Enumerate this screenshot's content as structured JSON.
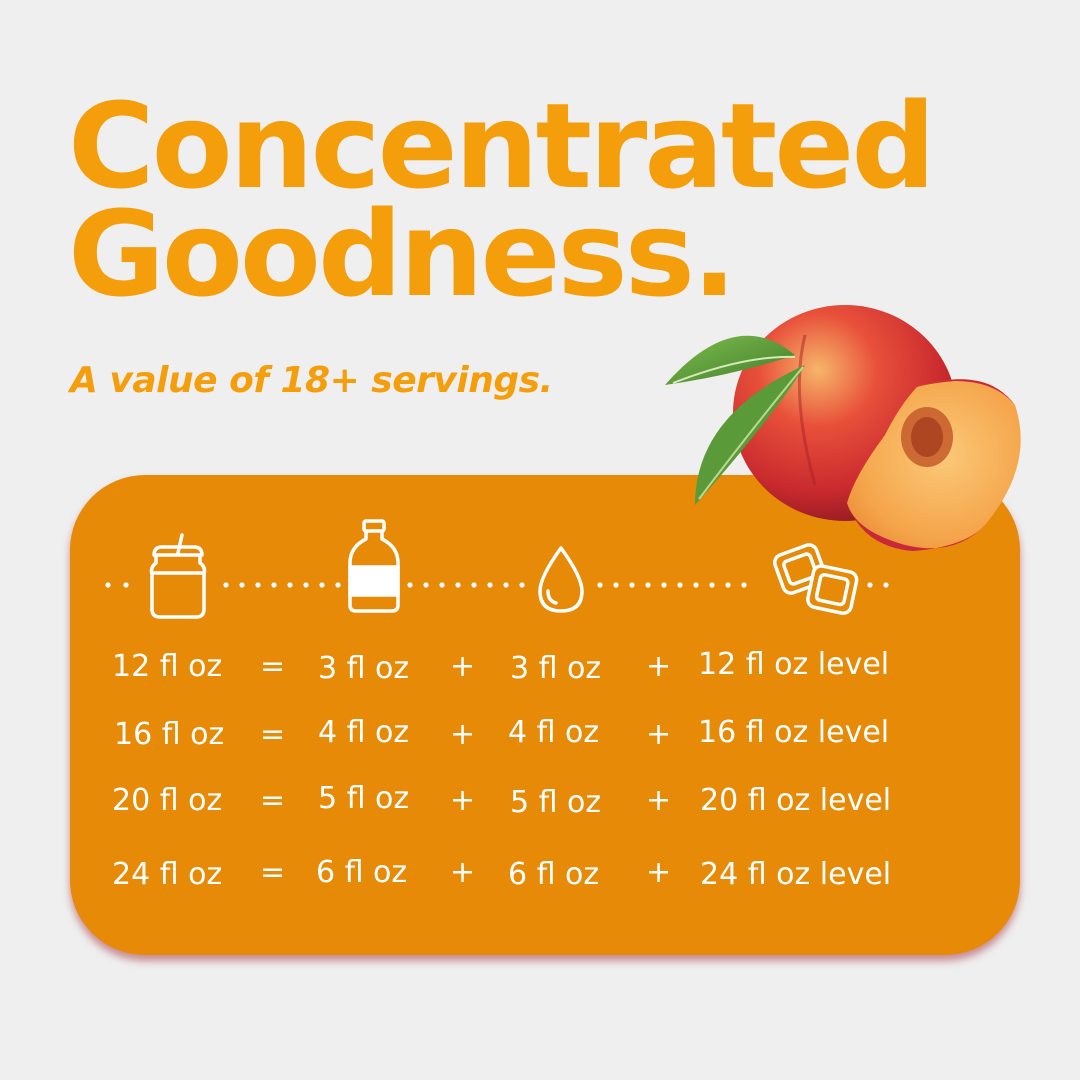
{
  "headline": {
    "line1": "Concentrated",
    "line2": "Goodness."
  },
  "subheadline": "A value of 18+ servings.",
  "colors": {
    "accent_orange": "#f59e0b",
    "panel_orange": "#e68a07",
    "background": "#efefef",
    "text_on_panel": "#ffffff"
  },
  "icons": [
    "cup-icon",
    "bottle-icon",
    "water-drop-icon",
    "ice-cubes-icon"
  ],
  "equivalence_table": {
    "rows": [
      {
        "total": "12 fl oz",
        "eq": "=",
        "concentrate": "3 fl oz",
        "plus1": "+",
        "water": "3 fl oz",
        "plus2": "+",
        "ice": "12 fl oz level"
      },
      {
        "total": "16 fl oz",
        "eq": "=",
        "concentrate": "4 fl oz",
        "plus1": "+",
        "water": "4 fl oz",
        "plus2": "+",
        "ice": "16 fl oz level"
      },
      {
        "total": "20 fl oz",
        "eq": "=",
        "concentrate": "5 fl oz",
        "plus1": "+",
        "water": "5 fl oz",
        "plus2": "+",
        "ice": "20 fl oz level"
      },
      {
        "total": "24 fl oz",
        "eq": "=",
        "concentrate": "6 fl oz",
        "plus1": "+",
        "water": "6 fl oz",
        "plus2": "+",
        "ice": "24 fl oz level"
      }
    ]
  }
}
